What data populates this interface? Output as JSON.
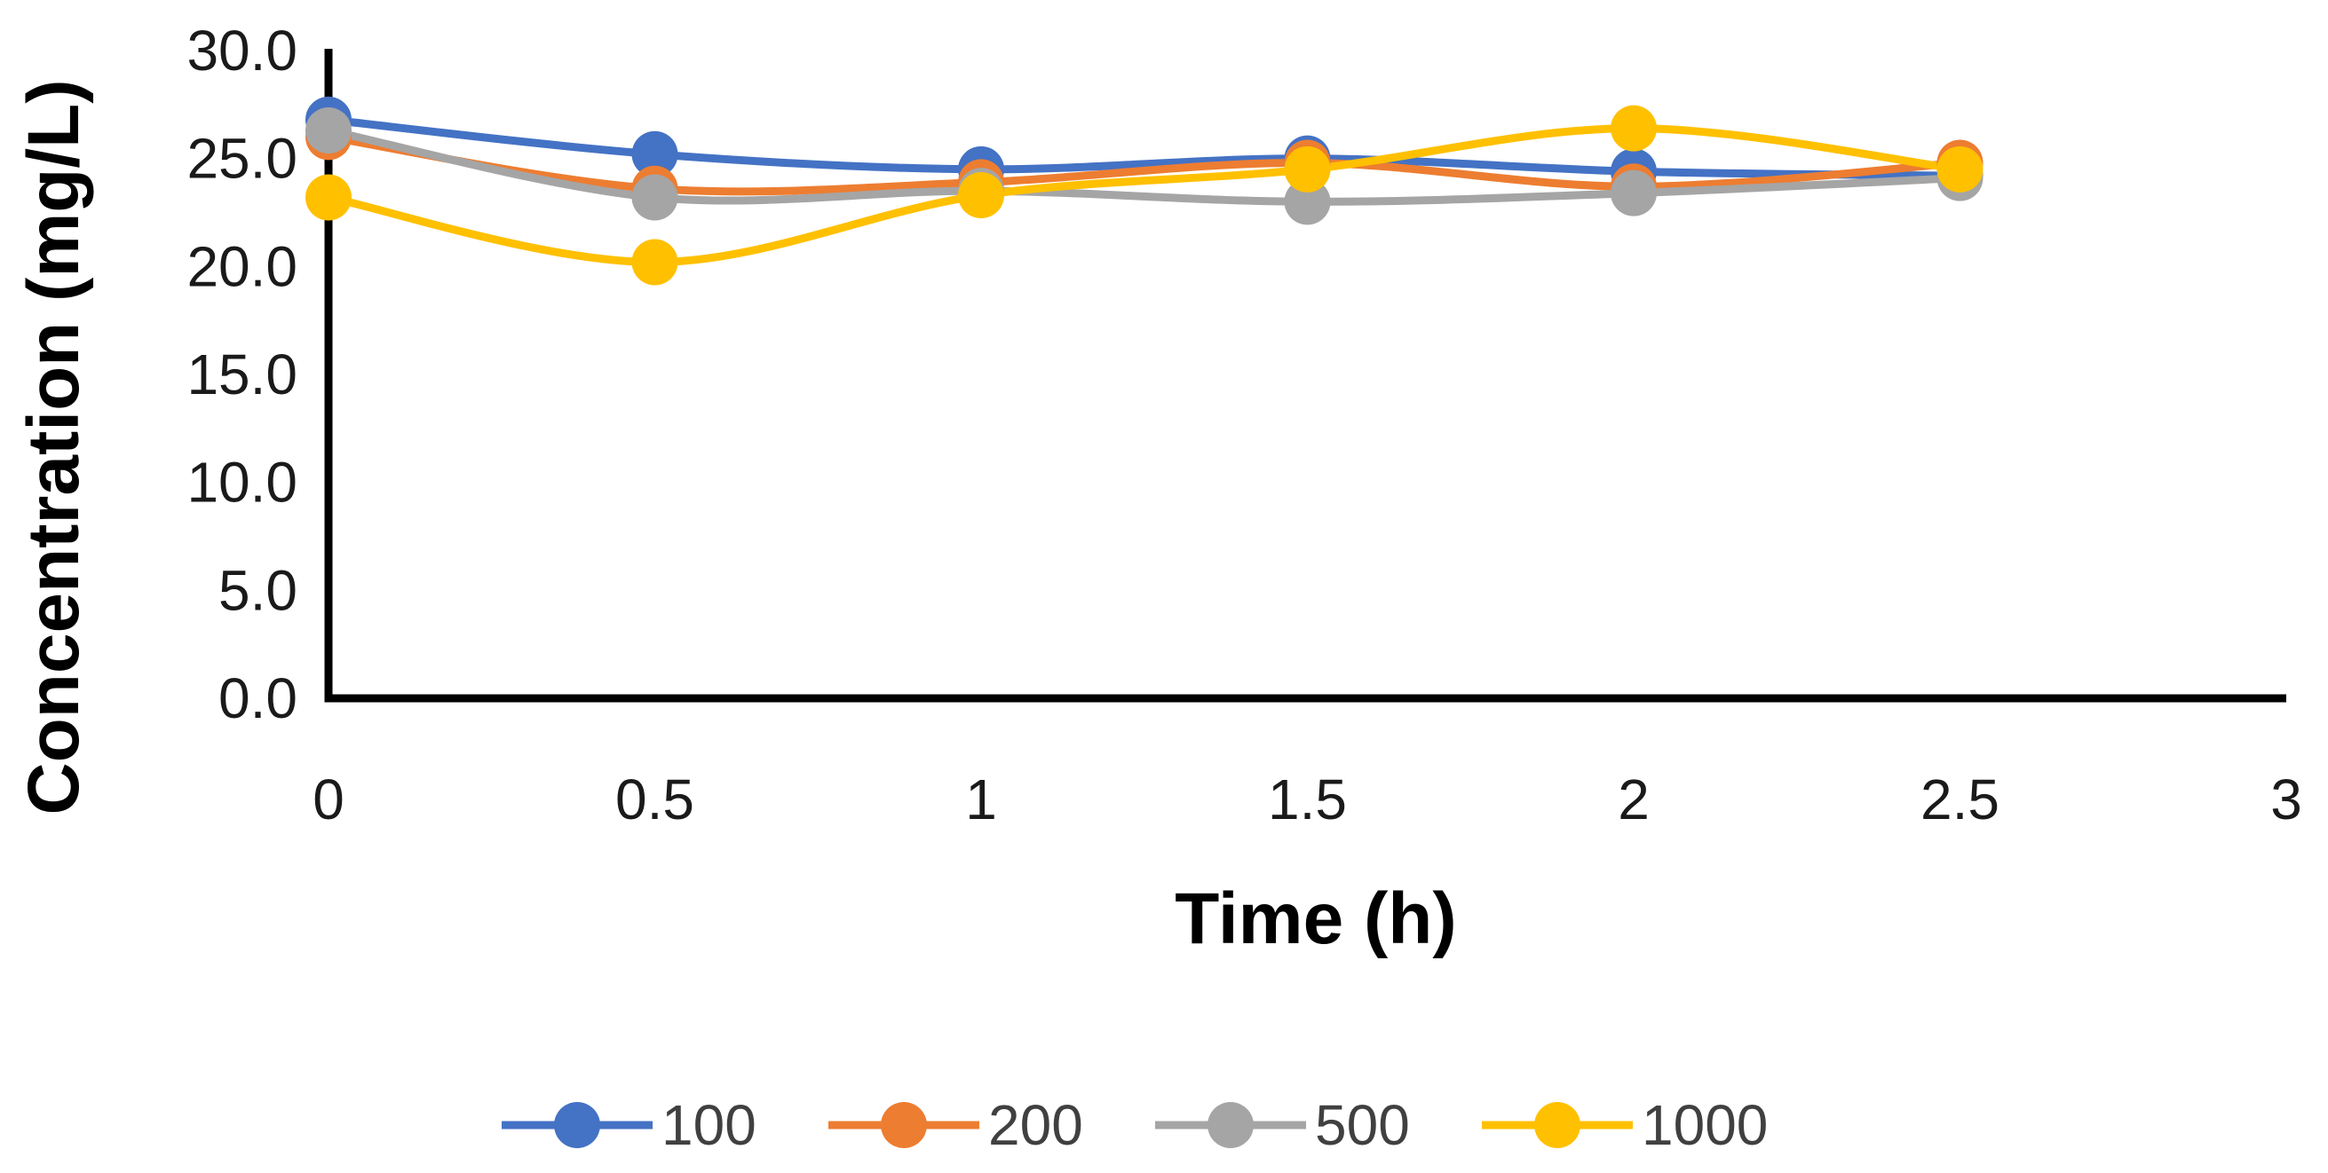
{
  "chart_data": {
    "type": "line",
    "smooth": true,
    "title": "",
    "xlabel": "Time (h)",
    "ylabel": "Concentration (mg/L)",
    "xlim": [
      0,
      3
    ],
    "ylim": [
      0,
      30
    ],
    "x_ticks": [
      "0",
      "0.5",
      "1",
      "1.5",
      "2",
      "2.5",
      "3"
    ],
    "x_tick_values": [
      0,
      0.5,
      1,
      1.5,
      2,
      2.5,
      3
    ],
    "y_ticks": [
      "0.0",
      "5.0",
      "10.0",
      "15.0",
      "20.0",
      "25.0",
      "30.0"
    ],
    "y_tick_values": [
      0,
      5,
      10,
      15,
      20,
      25,
      30
    ],
    "grid": false,
    "legend_position": "bottom",
    "x": [
      0,
      0.5,
      1,
      1.5,
      2,
      2.5
    ],
    "series": [
      {
        "name": "100",
        "color": "#4472C4",
        "values": [
          26.8,
          25.2,
          24.5,
          25.0,
          24.4,
          24.2
        ]
      },
      {
        "name": "200",
        "color": "#ED7D31",
        "values": [
          26.0,
          23.6,
          23.9,
          24.8,
          23.7,
          24.8
        ]
      },
      {
        "name": "500",
        "color": "#A5A5A5",
        "values": [
          26.3,
          23.2,
          23.5,
          23.0,
          23.4,
          24.1
        ]
      },
      {
        "name": "1000",
        "color": "#FFC000",
        "values": [
          23.2,
          20.2,
          23.3,
          24.5,
          26.4,
          24.5
        ]
      }
    ]
  }
}
